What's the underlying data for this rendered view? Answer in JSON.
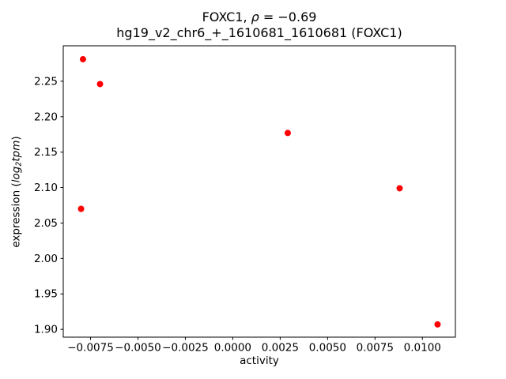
{
  "chart_data": {
    "type": "scatter",
    "title_line1_parts": [
      {
        "text": "FOXC1, "
      },
      {
        "text": "ρ",
        "italic": true
      },
      {
        "text": " = −0.69"
      }
    ],
    "title_line2": "hg19_v2_chr6_+_1610681_1610681 (FOXC1)",
    "xlabel": "activity",
    "ylabel_parts": [
      {
        "text": "expression ("
      },
      {
        "text": "log",
        "italic": true
      },
      {
        "text": "2",
        "italic": true,
        "sub": true
      },
      {
        "text": "tpm",
        "italic": true
      },
      {
        "text": ")"
      }
    ],
    "marker_color": "#ff0000",
    "points": [
      {
        "x": -0.0079,
        "y": 2.281
      },
      {
        "x": -0.007,
        "y": 2.246
      },
      {
        "x": 0.0029,
        "y": 2.177
      },
      {
        "x": 0.0088,
        "y": 2.099
      },
      {
        "x": -0.008,
        "y": 2.07
      },
      {
        "x": 0.0108,
        "y": 1.907
      }
    ],
    "xlim": [
      -0.00894,
      0.01174
    ],
    "ylim": [
      1.889,
      2.3
    ],
    "xticks": [
      -0.0075,
      -0.005,
      -0.0025,
      0.0,
      0.0025,
      0.005,
      0.0075,
      0.01
    ],
    "xtick_labels": [
      "−0.0075",
      "−0.0050",
      "−0.0025",
      "0.0000",
      "0.0025",
      "0.0050",
      "0.0075",
      "0.0100"
    ],
    "yticks": [
      1.9,
      1.95,
      2.0,
      2.05,
      2.1,
      2.15,
      2.2,
      2.25
    ],
    "ytick_labels": [
      "1.90",
      "1.95",
      "2.00",
      "2.05",
      "2.10",
      "2.15",
      "2.20",
      "2.25"
    ],
    "correlation": -0.69,
    "gene": "FOXC1",
    "legend": "none",
    "grid": false
  }
}
